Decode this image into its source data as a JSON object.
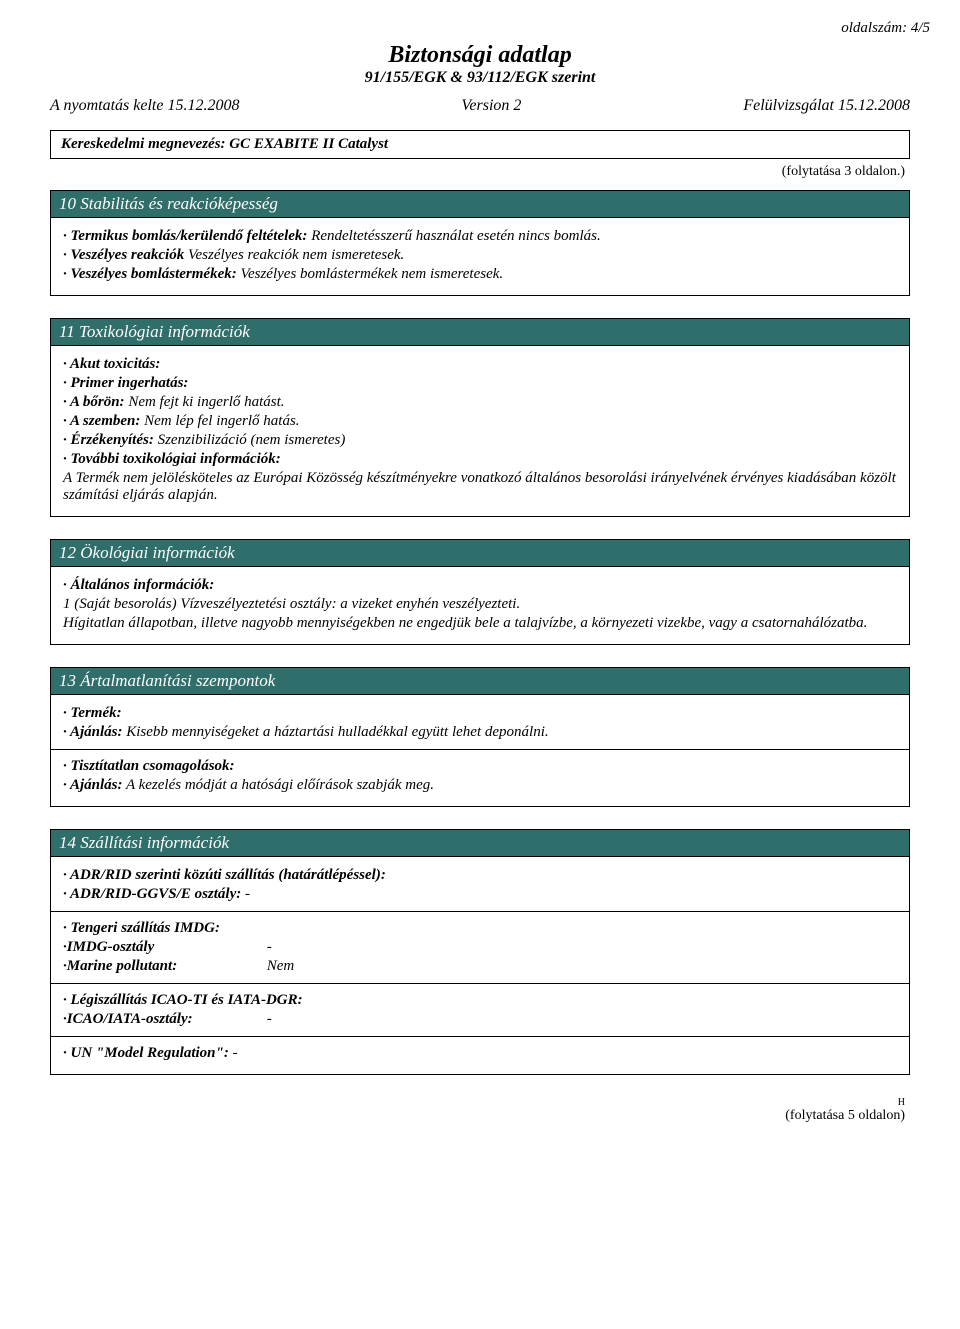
{
  "page_number": "oldalszám: 4/5",
  "title": "Biztonsági adatlap",
  "subtitle": "91/155/EGK & 93/112/EGK szerint",
  "meta": {
    "print_date": "A nyomtatás kelte 15.12.2008",
    "version": "Version 2",
    "revision": "Felülvizsgálat 15.12.2008"
  },
  "trade_name_label": "Kereskedelmi megnevezés:",
  "trade_name_value": "GC EXABITE II Catalyst",
  "continued_from": "(folytatása 3 oldalon.)",
  "section10": {
    "title": "10 Stabilitás és reakcióképesség",
    "thermal_label": "Termikus bomlás/kerülendő feltételek:",
    "thermal_value": "Rendeltetésszerű használat esetén nincs bomlás.",
    "reactions_label": "Veszélyes reakciók",
    "reactions_value": "Veszélyes reakciók nem ismeretesek.",
    "decomp_label": "Veszélyes bomlástermékek:",
    "decomp_value": "Veszélyes bomlástermékek nem ismeretesek."
  },
  "section11": {
    "title": "11 Toxikológiai információk",
    "acute": "Akut toxicitás:",
    "primary": "Primer ingerhatás:",
    "skin_label": "A bőrön:",
    "skin_value": "Nem fejt ki ingerlő hatást.",
    "eyes_label": "A szemben:",
    "eyes_value": "Nem lép fel ingerlő hatás.",
    "sens_label": "Érzékenyítés:",
    "sens_value": "Szenzibilizáció (nem ismeretes)",
    "further_label": "További toxikológiai információk:",
    "further_value": "A Termék nem jelölésköteles az Európai Közösség készítményekre vonatkozó általános besorolási irányelvének érvényes kiadásában közölt számítási eljárás alapján."
  },
  "section12": {
    "title": "12 Ökológiai információk",
    "general_label": "Általános információk:",
    "general_value1": "1 (Saját besorolás) Vízveszélyeztetési osztály: a vizeket enyhén veszélyezteti.",
    "general_value2": "Hígitatlan állapotban, illetve nagyobb mennyiségekben ne engedjük bele a talajvízbe, a környezeti vizekbe, vagy a csatornahálózatba."
  },
  "section13": {
    "title": "13 Ártalmatlanítási szempontok",
    "product_label": "Termék:",
    "rec1_label": "Ajánlás:",
    "rec1_value": "Kisebb mennyiségeket a háztartási hulladékkal együtt lehet deponálni.",
    "unclean_label": "Tisztítatlan csomagolások:",
    "rec2_label": "Ajánlás:",
    "rec2_value": "A kezelés módját a hatósági előírások szabják meg."
  },
  "section14": {
    "title": "14 Szállítási információk",
    "adr_label": "ADR/RID szerinti közúti szállítás (határátlépéssel):",
    "adr_class_label": "ADR/RID-GGVS/E osztály:",
    "adr_class_value": "-",
    "imdg_label": "Tengeri szállítás IMDG:",
    "imdg_class_label": "IMDG-osztály",
    "imdg_class_value": "-",
    "marine_label": "Marine pollutant:",
    "marine_value": "Nem",
    "icao_label": "Légiszállítás ICAO-TI és IATA-DGR:",
    "icao_class_label": "ICAO/IATA-osztály:",
    "icao_class_value": "-",
    "un_label": "UN \"Model Regulation\":",
    "un_value": "-"
  },
  "footer_h": "H",
  "continued_next": "(folytatása 5 oldalon)"
}
